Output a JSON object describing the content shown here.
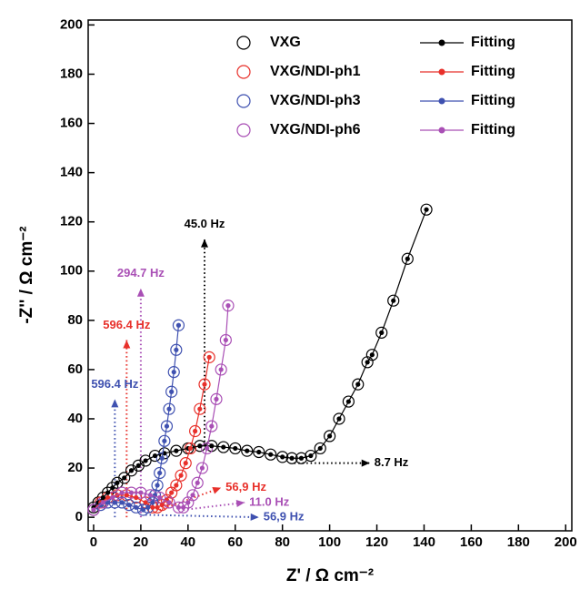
{
  "chart_data": {
    "type": "scatter",
    "x_label": "Z' / Ω cm⁻²",
    "y_label": "-Z'' / Ω cm⁻²",
    "xlim": [
      -2.3,
      202.6
    ],
    "ylim": [
      -5.5,
      202
    ],
    "xticks": [
      0,
      20,
      40,
      60,
      80,
      100,
      120,
      140,
      160,
      180,
      200
    ],
    "yticks": [
      0,
      20,
      40,
      60,
      80,
      100,
      120,
      140,
      160,
      180,
      200
    ],
    "series": [
      {
        "name": "VXG",
        "color": "#000000",
        "marker": "open-circle",
        "x": [
          0,
          2,
          4,
          6,
          8,
          10,
          13,
          16,
          19,
          22,
          26,
          30,
          35,
          40,
          45,
          50,
          55,
          60,
          65,
          70,
          75,
          80,
          84,
          88,
          92,
          96,
          100,
          104,
          108,
          112,
          116,
          118,
          122,
          127,
          133,
          141
        ],
        "values": [
          4,
          6,
          8,
          10,
          12,
          14,
          16,
          19,
          21,
          23,
          25,
          26,
          27,
          28,
          29,
          29,
          28.5,
          28,
          27,
          26.5,
          25.5,
          24.5,
          24,
          24,
          25,
          28,
          33,
          40,
          47,
          54,
          63,
          66,
          75,
          88,
          105,
          125
        ]
      },
      {
        "name": "VXG/NDI-ph1",
        "color": "#e8302a",
        "marker": "open-circle",
        "x": [
          0,
          3,
          6,
          10,
          14,
          18,
          22,
          25,
          27,
          29,
          31,
          33,
          35,
          37,
          39,
          41,
          43,
          45,
          47,
          49
        ],
        "values": [
          3,
          6,
          8,
          9,
          9,
          8,
          6,
          4,
          4,
          5,
          7,
          10,
          13,
          17,
          22,
          28,
          35,
          44,
          54,
          65
        ]
      },
      {
        "name": "VXG/NDI-ph3",
        "color": "#3f51b0",
        "marker": "open-circle",
        "x": [
          0,
          3,
          6,
          9,
          12,
          15,
          18,
          21,
          23,
          25,
          26,
          27,
          28,
          29,
          30,
          31,
          32,
          33,
          34,
          35,
          36
        ],
        "values": [
          3,
          5,
          6,
          6,
          6,
          5,
          4,
          3,
          4,
          6,
          9,
          13,
          18,
          24,
          31,
          37,
          44,
          51,
          59,
          68,
          78
        ]
      },
      {
        "name": "VXG/NDI-ph6",
        "color": "#a94fb5",
        "marker": "open-circle",
        "x": [
          0,
          4,
          8,
          12,
          16,
          20,
          24,
          28,
          32,
          36,
          38,
          40,
          42,
          44,
          46,
          48,
          50,
          52,
          54,
          56,
          57
        ],
        "values": [
          3,
          6,
          8,
          10,
          10,
          10,
          9,
          8,
          6,
          4,
          4,
          6,
          9,
          14,
          20,
          28,
          37,
          48,
          60,
          72,
          86
        ]
      },
      {
        "name": "Fitting",
        "color": "#000000",
        "marker": "line-dot",
        "x": [
          0,
          2,
          4,
          6,
          8,
          10,
          13,
          16,
          19,
          22,
          26,
          30,
          35,
          40,
          45,
          50,
          55,
          60,
          65,
          70,
          75,
          80,
          84,
          88,
          92,
          96,
          100,
          104,
          108,
          112,
          116,
          118,
          122,
          127,
          133,
          141
        ],
        "values": [
          4,
          6,
          8,
          10,
          12,
          14,
          16,
          19,
          21,
          23,
          25,
          26,
          27,
          28,
          29,
          29,
          28.5,
          28,
          27,
          26.5,
          25.5,
          24.5,
          24,
          24,
          25,
          28,
          33,
          40,
          47,
          54,
          63,
          66,
          75,
          88,
          105,
          125
        ]
      },
      {
        "name": "Fitting",
        "color": "#e8302a",
        "marker": "line-dot",
        "x": [
          0,
          3,
          6,
          10,
          14,
          18,
          22,
          25,
          27,
          29,
          31,
          33,
          35,
          37,
          39,
          41,
          43,
          45,
          47,
          49
        ],
        "values": [
          3,
          6,
          8,
          9,
          9,
          8,
          6,
          4,
          4,
          5,
          7,
          10,
          13,
          17,
          22,
          28,
          35,
          44,
          54,
          65
        ]
      },
      {
        "name": "Fitting",
        "color": "#3f51b0",
        "marker": "line-dot",
        "x": [
          0,
          3,
          6,
          9,
          12,
          15,
          18,
          21,
          23,
          25,
          26,
          27,
          28,
          29,
          30,
          31,
          32,
          33,
          34,
          35,
          36
        ],
        "values": [
          3,
          5,
          6,
          6,
          6,
          5,
          4,
          3,
          4,
          6,
          9,
          13,
          18,
          24,
          31,
          37,
          44,
          51,
          59,
          68,
          78
        ]
      },
      {
        "name": "Fitting",
        "color": "#a94fb5",
        "marker": "line-dot",
        "x": [
          0,
          4,
          8,
          12,
          16,
          20,
          24,
          28,
          32,
          36,
          38,
          40,
          42,
          44,
          46,
          48,
          50,
          52,
          54,
          56,
          57
        ],
        "values": [
          3,
          6,
          8,
          10,
          10,
          10,
          9,
          8,
          6,
          4,
          4,
          6,
          9,
          14,
          20,
          28,
          37,
          48,
          60,
          72,
          86
        ]
      }
    ],
    "annotations": [
      {
        "text": "45.0 Hz",
        "color": "#000000",
        "from": [
          47,
          29
        ],
        "to": [
          47,
          113
        ]
      },
      {
        "text": "294.7 Hz",
        "color": "#a94fb5",
        "from": [
          20,
          0
        ],
        "to": [
          20,
          93
        ]
      },
      {
        "text": "596.4 Hz",
        "color": "#e8302a",
        "from": [
          14,
          0
        ],
        "to": [
          14,
          72
        ]
      },
      {
        "text": "596.4 Hz",
        "color": "#3f51b0",
        "from": [
          9,
          0
        ],
        "to": [
          9,
          48
        ]
      },
      {
        "text": "8.7 Hz",
        "color": "#000000",
        "from": [
          85,
          22
        ],
        "to": [
          117,
          22
        ]
      },
      {
        "text": "56,9 Hz",
        "color": "#e8302a",
        "from": [
          28,
          3
        ],
        "to": [
          54,
          12
        ]
      },
      {
        "text": "11.0 Hz",
        "color": "#a94fb5",
        "from": [
          38,
          3
        ],
        "to": [
          64,
          6
        ]
      },
      {
        "text": "56,9 Hz",
        "color": "#3f51b0",
        "from": [
          22,
          1
        ],
        "to": [
          70,
          0
        ]
      }
    ]
  }
}
